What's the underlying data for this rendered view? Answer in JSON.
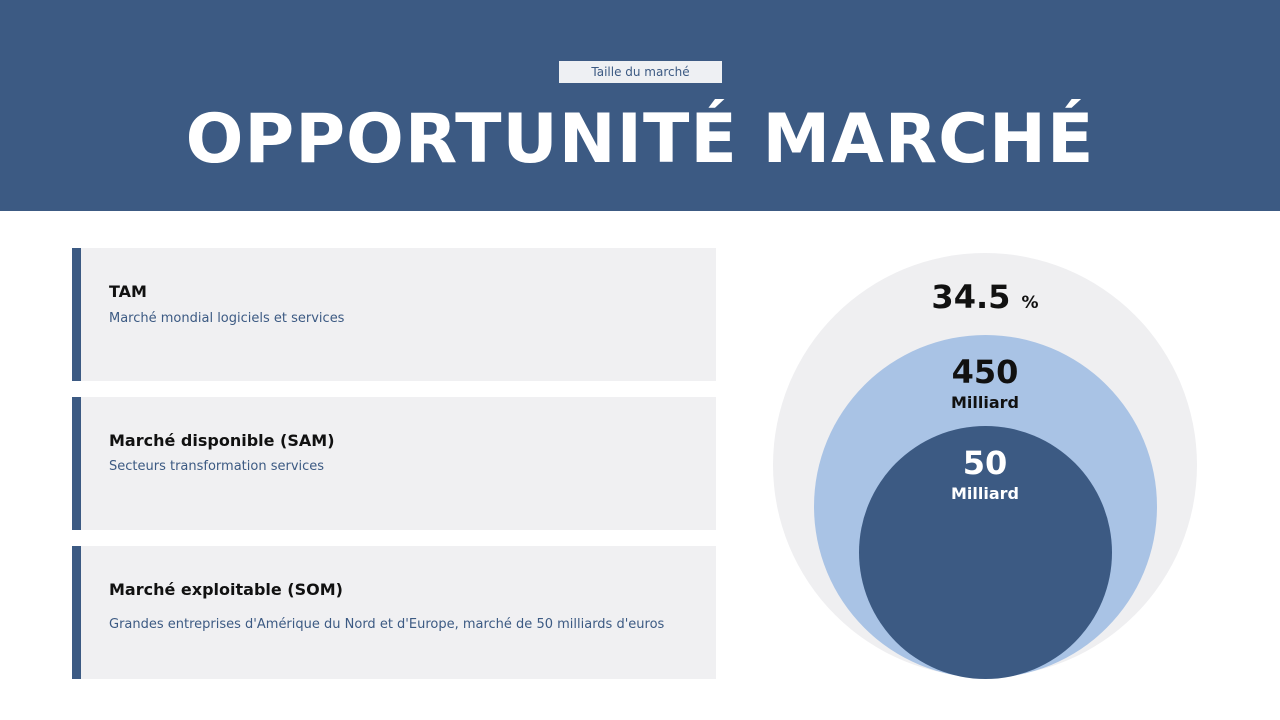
{
  "header": {
    "tag": "Taille du marché",
    "title": "OPPORTUNITÉ MARCHÉ"
  },
  "cards": [
    {
      "title": "TAM",
      "desc": "Marché mondial logiciels et services"
    },
    {
      "title": "Marché disponible (SAM)",
      "desc": "Secteurs transformation services"
    },
    {
      "title": "Marché exploitable (SOM)",
      "desc": "Grandes entreprises d'Amérique du Nord et d'Europe, marché de 50 milliards d'euros"
    }
  ],
  "diagram": {
    "outer": {
      "value": "34.5",
      "unit": "%",
      "color": "#efeff1"
    },
    "middle": {
      "value": "450",
      "unit": "Milliard",
      "color": "#a9c3e5"
    },
    "inner": {
      "value": "50",
      "unit": "Milliard",
      "color": "#3c5a83"
    }
  }
}
